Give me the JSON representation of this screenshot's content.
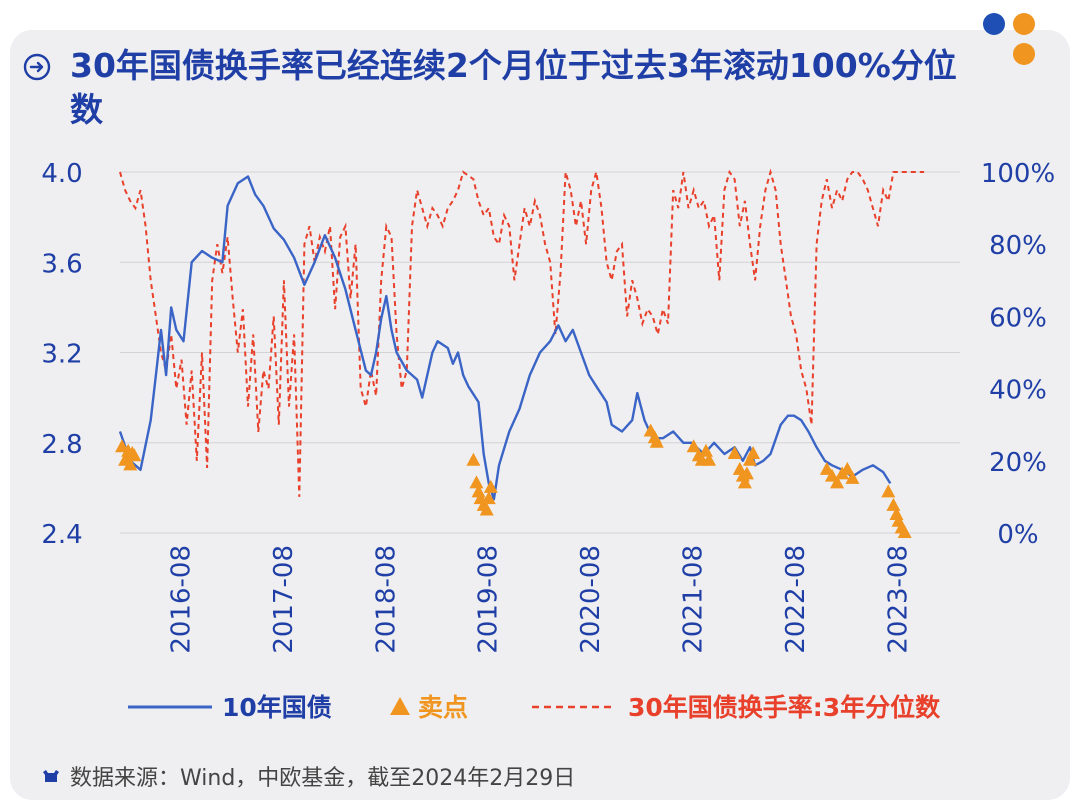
{
  "title": "30年国债换手率已经连续2个月位于过去3年滚动100%分位数",
  "footer": {
    "source_text": "数据来源：Wind，中欧基金，截至2024年2月29日"
  },
  "colors": {
    "blue": "#3a64c6",
    "red": "#e8402a",
    "orange": "#f0951f",
    "title": "#1f3fa6",
    "grid": "#d3d3d6",
    "dot_blue": "#1f4fb4",
    "dot_orange": "#f0951f"
  },
  "chart_data": {
    "type": "line",
    "title": "30年国债换手率已经连续2个月位于过去3年滚动100%分位数",
    "x_range": [
      2016.0,
      2024.2
    ],
    "x_ticks": [
      {
        "value": 2016.58,
        "label": "2016-08"
      },
      {
        "value": 2017.58,
        "label": "2017-08"
      },
      {
        "value": 2018.58,
        "label": "2018-08"
      },
      {
        "value": 2019.58,
        "label": "2019-08"
      },
      {
        "value": 2020.58,
        "label": "2020-08"
      },
      {
        "value": 2021.58,
        "label": "2021-08"
      },
      {
        "value": 2022.58,
        "label": "2022-08"
      },
      {
        "value": 2023.58,
        "label": "2023-08"
      }
    ],
    "y_left": {
      "range": [
        2.4,
        4.0
      ],
      "ticks": [
        "2.4",
        "2.8",
        "3.2",
        "3.6",
        "4.0"
      ]
    },
    "y_right": {
      "range": [
        0,
        100
      ],
      "ticks": [
        "0%",
        "20%",
        "40%",
        "60%",
        "80%",
        "100%"
      ]
    },
    "legend": [
      {
        "label": "10年国债",
        "style": "line"
      },
      {
        "label": "卖点",
        "style": "triangle"
      },
      {
        "label": "30年国债换手率:3年分位数",
        "style": "dashed"
      }
    ],
    "series": [
      {
        "name": "10年国债",
        "axis": "left",
        "points": [
          [
            2016.0,
            2.85
          ],
          [
            2016.1,
            2.72
          ],
          [
            2016.2,
            2.68
          ],
          [
            2016.3,
            2.9
          ],
          [
            2016.35,
            3.1
          ],
          [
            2016.4,
            3.3
          ],
          [
            2016.45,
            3.1
          ],
          [
            2016.5,
            3.4
          ],
          [
            2016.55,
            3.3
          ],
          [
            2016.62,
            3.25
          ],
          [
            2016.7,
            3.6
          ],
          [
            2016.8,
            3.65
          ],
          [
            2016.9,
            3.62
          ],
          [
            2017.0,
            3.6
          ],
          [
            2017.05,
            3.85
          ],
          [
            2017.15,
            3.95
          ],
          [
            2017.25,
            3.98
          ],
          [
            2017.32,
            3.9
          ],
          [
            2017.4,
            3.85
          ],
          [
            2017.5,
            3.75
          ],
          [
            2017.6,
            3.7
          ],
          [
            2017.7,
            3.62
          ],
          [
            2017.8,
            3.5
          ],
          [
            2017.9,
            3.6
          ],
          [
            2018.0,
            3.72
          ],
          [
            2018.1,
            3.62
          ],
          [
            2018.15,
            3.55
          ],
          [
            2018.2,
            3.48
          ],
          [
            2018.3,
            3.3
          ],
          [
            2018.4,
            3.12
          ],
          [
            2018.45,
            3.1
          ],
          [
            2018.5,
            3.2
          ],
          [
            2018.55,
            3.35
          ],
          [
            2018.6,
            3.45
          ],
          [
            2018.65,
            3.3
          ],
          [
            2018.7,
            3.2
          ],
          [
            2018.8,
            3.12
          ],
          [
            2018.9,
            3.08
          ],
          [
            2018.95,
            3.0
          ],
          [
            2019.05,
            3.2
          ],
          [
            2019.1,
            3.25
          ],
          [
            2019.2,
            3.22
          ],
          [
            2019.25,
            3.15
          ],
          [
            2019.3,
            3.2
          ],
          [
            2019.35,
            3.1
          ],
          [
            2019.4,
            3.05
          ],
          [
            2019.5,
            2.98
          ],
          [
            2019.55,
            2.75
          ],
          [
            2019.6,
            2.62
          ],
          [
            2019.65,
            2.55
          ],
          [
            2019.7,
            2.7
          ],
          [
            2019.8,
            2.85
          ],
          [
            2019.9,
            2.95
          ],
          [
            2020.0,
            3.1
          ],
          [
            2020.1,
            3.2
          ],
          [
            2020.2,
            3.25
          ],
          [
            2020.28,
            3.32
          ],
          [
            2020.35,
            3.25
          ],
          [
            2020.42,
            3.3
          ],
          [
            2020.5,
            3.2
          ],
          [
            2020.58,
            3.1
          ],
          [
            2020.65,
            3.05
          ],
          [
            2020.75,
            2.98
          ],
          [
            2020.8,
            2.88
          ],
          [
            2020.9,
            2.85
          ],
          [
            2021.0,
            2.9
          ],
          [
            2021.05,
            3.02
          ],
          [
            2021.12,
            2.9
          ],
          [
            2021.2,
            2.82
          ],
          [
            2021.3,
            2.82
          ],
          [
            2021.4,
            2.85
          ],
          [
            2021.5,
            2.8
          ],
          [
            2021.58,
            2.8
          ],
          [
            2021.7,
            2.75
          ],
          [
            2021.8,
            2.8
          ],
          [
            2021.9,
            2.75
          ],
          [
            2022.0,
            2.78
          ],
          [
            2022.08,
            2.72
          ],
          [
            2022.15,
            2.78
          ],
          [
            2022.2,
            2.7
          ],
          [
            2022.28,
            2.72
          ],
          [
            2022.35,
            2.75
          ],
          [
            2022.45,
            2.88
          ],
          [
            2022.52,
            2.92
          ],
          [
            2022.58,
            2.92
          ],
          [
            2022.65,
            2.9
          ],
          [
            2022.72,
            2.85
          ],
          [
            2022.8,
            2.78
          ],
          [
            2022.88,
            2.72
          ],
          [
            2022.95,
            2.7
          ],
          [
            2023.05,
            2.68
          ],
          [
            2023.15,
            2.65
          ],
          [
            2023.25,
            2.68
          ],
          [
            2023.35,
            2.7
          ],
          [
            2023.45,
            2.67
          ],
          [
            2023.52,
            2.62
          ]
        ]
      },
      {
        "name": "30年国债换手率:3年分位数",
        "axis": "right",
        "points": [
          [
            2016.0,
            100
          ],
          [
            2016.05,
            95
          ],
          [
            2016.1,
            92
          ],
          [
            2016.15,
            90
          ],
          [
            2016.2,
            95
          ],
          [
            2016.25,
            85
          ],
          [
            2016.3,
            70
          ],
          [
            2016.35,
            60
          ],
          [
            2016.4,
            50
          ],
          [
            2016.45,
            45
          ],
          [
            2016.5,
            55
          ],
          [
            2016.55,
            40
          ],
          [
            2016.6,
            48
          ],
          [
            2016.65,
            30
          ],
          [
            2016.7,
            45
          ],
          [
            2016.75,
            20
          ],
          [
            2016.8,
            50
          ],
          [
            2016.85,
            18
          ],
          [
            2016.9,
            70
          ],
          [
            2016.95,
            80
          ],
          [
            2017.0,
            72
          ],
          [
            2017.05,
            82
          ],
          [
            2017.1,
            65
          ],
          [
            2017.15,
            50
          ],
          [
            2017.2,
            62
          ],
          [
            2017.25,
            35
          ],
          [
            2017.3,
            55
          ],
          [
            2017.35,
            28
          ],
          [
            2017.4,
            45
          ],
          [
            2017.45,
            40
          ],
          [
            2017.5,
            60
          ],
          [
            2017.55,
            30
          ],
          [
            2017.6,
            70
          ],
          [
            2017.65,
            35
          ],
          [
            2017.7,
            55
          ],
          [
            2017.75,
            10
          ],
          [
            2017.8,
            80
          ],
          [
            2017.85,
            85
          ],
          [
            2017.9,
            75
          ],
          [
            2017.95,
            82
          ],
          [
            2018.0,
            78
          ],
          [
            2018.05,
            85
          ],
          [
            2018.1,
            62
          ],
          [
            2018.15,
            82
          ],
          [
            2018.2,
            85
          ],
          [
            2018.25,
            65
          ],
          [
            2018.3,
            80
          ],
          [
            2018.35,
            40
          ],
          [
            2018.4,
            35
          ],
          [
            2018.45,
            45
          ],
          [
            2018.5,
            38
          ],
          [
            2018.55,
            70
          ],
          [
            2018.6,
            85
          ],
          [
            2018.65,
            82
          ],
          [
            2018.7,
            55
          ],
          [
            2018.75,
            40
          ],
          [
            2018.8,
            45
          ],
          [
            2018.85,
            85
          ],
          [
            2018.9,
            95
          ],
          [
            2018.95,
            90
          ],
          [
            2019.0,
            85
          ],
          [
            2019.05,
            90
          ],
          [
            2019.1,
            88
          ],
          [
            2019.15,
            85
          ],
          [
            2019.2,
            90
          ],
          [
            2019.25,
            92
          ],
          [
            2019.3,
            95
          ],
          [
            2019.35,
            100
          ],
          [
            2019.45,
            98
          ],
          [
            2019.5,
            92
          ],
          [
            2019.55,
            88
          ],
          [
            2019.6,
            90
          ],
          [
            2019.65,
            82
          ],
          [
            2019.7,
            80
          ],
          [
            2019.75,
            88
          ],
          [
            2019.8,
            85
          ],
          [
            2019.85,
            70
          ],
          [
            2019.9,
            80
          ],
          [
            2019.95,
            90
          ],
          [
            2020.0,
            85
          ],
          [
            2020.05,
            92
          ],
          [
            2020.1,
            88
          ],
          [
            2020.15,
            80
          ],
          [
            2020.2,
            75
          ],
          [
            2020.25,
            55
          ],
          [
            2020.3,
            72
          ],
          [
            2020.35,
            100
          ],
          [
            2020.4,
            95
          ],
          [
            2020.45,
            85
          ],
          [
            2020.5,
            92
          ],
          [
            2020.55,
            80
          ],
          [
            2020.6,
            95
          ],
          [
            2020.65,
            100
          ],
          [
            2020.7,
            90
          ],
          [
            2020.75,
            75
          ],
          [
            2020.8,
            70
          ],
          [
            2020.85,
            78
          ],
          [
            2020.9,
            80
          ],
          [
            2020.95,
            60
          ],
          [
            2021.0,
            70
          ],
          [
            2021.05,
            65
          ],
          [
            2021.1,
            58
          ],
          [
            2021.15,
            62
          ],
          [
            2021.2,
            60
          ],
          [
            2021.25,
            55
          ],
          [
            2021.3,
            62
          ],
          [
            2021.35,
            58
          ],
          [
            2021.4,
            95
          ],
          [
            2021.45,
            90
          ],
          [
            2021.5,
            100
          ],
          [
            2021.55,
            90
          ],
          [
            2021.6,
            95
          ],
          [
            2021.65,
            90
          ],
          [
            2021.7,
            92
          ],
          [
            2021.75,
            85
          ],
          [
            2021.8,
            88
          ],
          [
            2021.85,
            70
          ],
          [
            2021.9,
            95
          ],
          [
            2021.95,
            100
          ],
          [
            2022.0,
            98
          ],
          [
            2022.05,
            85
          ],
          [
            2022.1,
            92
          ],
          [
            2022.15,
            80
          ],
          [
            2022.2,
            70
          ],
          [
            2022.25,
            85
          ],
          [
            2022.3,
            95
          ],
          [
            2022.35,
            100
          ],
          [
            2022.4,
            95
          ],
          [
            2022.45,
            80
          ],
          [
            2022.5,
            70
          ],
          [
            2022.55,
            60
          ],
          [
            2022.6,
            55
          ],
          [
            2022.65,
            45
          ],
          [
            2022.7,
            40
          ],
          [
            2022.75,
            30
          ],
          [
            2022.8,
            80
          ],
          [
            2022.85,
            92
          ],
          [
            2022.9,
            98
          ],
          [
            2022.95,
            90
          ],
          [
            2023.0,
            95
          ],
          [
            2023.05,
            92
          ],
          [
            2023.1,
            98
          ],
          [
            2023.15,
            100
          ],
          [
            2023.2,
            100
          ],
          [
            2023.25,
            98
          ],
          [
            2023.3,
            95
          ],
          [
            2023.35,
            90
          ],
          [
            2023.4,
            85
          ],
          [
            2023.45,
            95
          ],
          [
            2023.5,
            92
          ],
          [
            2023.55,
            100
          ],
          [
            2023.6,
            100
          ],
          [
            2023.7,
            100
          ],
          [
            2023.85,
            100
          ]
        ]
      },
      {
        "name": "卖点",
        "axis": "left",
        "type": "scatter",
        "points": [
          [
            2016.02,
            2.78
          ],
          [
            2016.05,
            2.72
          ],
          [
            2016.08,
            2.76
          ],
          [
            2016.1,
            2.7
          ],
          [
            2016.12,
            2.75
          ],
          [
            2016.14,
            2.74
          ],
          [
            2019.45,
            2.72
          ],
          [
            2019.48,
            2.62
          ],
          [
            2019.5,
            2.58
          ],
          [
            2019.52,
            2.55
          ],
          [
            2019.55,
            2.52
          ],
          [
            2019.58,
            2.5
          ],
          [
            2019.6,
            2.55
          ],
          [
            2019.62,
            2.6
          ],
          [
            2021.18,
            2.85
          ],
          [
            2021.22,
            2.82
          ],
          [
            2021.24,
            2.8
          ],
          [
            2021.6,
            2.78
          ],
          [
            2021.65,
            2.74
          ],
          [
            2021.68,
            2.72
          ],
          [
            2021.72,
            2.76
          ],
          [
            2021.75,
            2.72
          ],
          [
            2022.0,
            2.75
          ],
          [
            2022.05,
            2.68
          ],
          [
            2022.08,
            2.65
          ],
          [
            2022.1,
            2.62
          ],
          [
            2022.12,
            2.66
          ],
          [
            2022.15,
            2.72
          ],
          [
            2022.18,
            2.75
          ],
          [
            2022.9,
            2.68
          ],
          [
            2022.95,
            2.65
          ],
          [
            2023.0,
            2.62
          ],
          [
            2023.05,
            2.66
          ],
          [
            2023.1,
            2.68
          ],
          [
            2023.15,
            2.64
          ],
          [
            2023.5,
            2.58
          ],
          [
            2023.55,
            2.52
          ],
          [
            2023.58,
            2.48
          ],
          [
            2023.6,
            2.45
          ],
          [
            2023.63,
            2.42
          ],
          [
            2023.66,
            2.4
          ]
        ]
      }
    ]
  }
}
